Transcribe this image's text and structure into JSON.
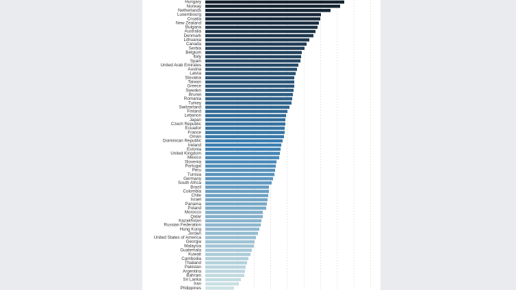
{
  "chart_data": {
    "type": "barh",
    "categories": [
      "Hungary",
      "Norway",
      "Netherlands",
      "Luxembourg",
      "Croatia",
      "New Zealand",
      "Bulgaria",
      "Australia",
      "Denmark",
      "Lithuania",
      "Canada",
      "Serbia",
      "Belgium",
      "Italy",
      "Spain",
      "United Arab Emirates",
      "Austria",
      "Latvia",
      "Slovakia",
      "Taiwan",
      "Greece",
      "Sweden",
      "Brunei",
      "Romania",
      "Turkey",
      "Switzerland",
      "Finland",
      "Lebanon",
      "Japan",
      "Czech Republic",
      "Ecuador",
      "France",
      "Oman",
      "Dominican Republic",
      "Ireland",
      "Estonia",
      "United Kingdom",
      "Mexico",
      "Slovenia",
      "Portugal",
      "Peru",
      "Tunisia",
      "Germany",
      "South Africa",
      "Brazil",
      "Colombia",
      "Chile",
      "Israel",
      "Panama",
      "Poland",
      "Morocco",
      "Qatar",
      "Kazakhstan",
      "Russian Federation",
      "Hong Kong",
      "Jordan",
      "United States of America",
      "Georgia",
      "Malaysia",
      "Guatemala",
      "Kuwait",
      "Cambodia",
      "Thailand",
      "Pakistan",
      "Argentina",
      "Bahrain",
      "Sri Lanka",
      "Iran",
      "Philippines"
    ],
    "values": [
      203,
      197,
      183,
      169,
      168,
      166,
      164,
      161,
      158,
      152,
      148,
      145,
      141,
      140,
      139,
      136,
      134,
      132,
      130,
      130,
      130,
      129,
      128,
      127,
      126,
      123,
      120,
      118,
      117,
      117,
      116,
      116,
      115,
      113,
      111,
      110,
      109,
      108,
      104,
      103,
      102,
      101,
      99,
      97,
      93,
      93,
      92,
      91,
      90,
      89,
      84,
      84,
      82,
      81,
      79,
      77,
      74,
      72,
      71,
      68,
      66,
      63,
      61,
      59,
      58,
      57,
      52,
      49,
      42
    ],
    "xlim": [
      0,
      250
    ],
    "color_scale": [
      "#14202e",
      "#3b7fb2",
      "#cde2e4"
    ],
    "grid": true
  }
}
